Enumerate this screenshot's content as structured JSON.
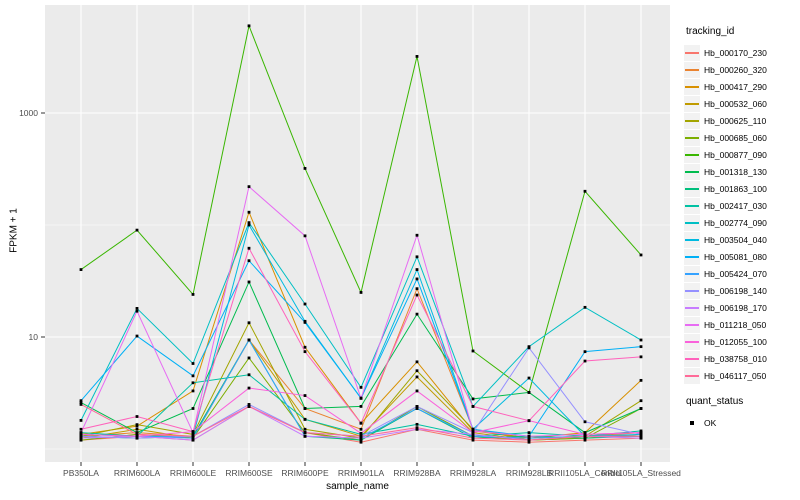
{
  "chart_data": {
    "type": "line",
    "title": "",
    "xlabel": "sample_name",
    "ylabel": "FPKM + 1",
    "y_scale": "log10",
    "ylim": [
      1.02,
      7000
    ],
    "grid": true,
    "legend_position": "right",
    "y_major_ticks": [
      {
        "label": "10",
        "value": 10
      },
      {
        "label": "1000",
        "value": 1000
      }
    ],
    "y_minor_ticks": [
      1,
      100
    ],
    "categories": [
      "PB350LA",
      "RRIM600LA",
      "RRIM600LE",
      "RRIM600SE",
      "RRIM600PE",
      "RRIM901LA",
      "RRIM928BA",
      "RRIM928LA",
      "RRIM928LB",
      "RRII105LA_Control",
      "RRII105LA_Stressed"
    ],
    "legend": {
      "title": "tracking_id"
    },
    "legend2": {
      "title": "quant_status",
      "items": [
        {
          "label": "OK",
          "marker": "black-square"
        }
      ]
    },
    "style": {
      "panel_bg": "#EBEBEB",
      "grid_color": "#FFFFFF",
      "tick_color": "#333333",
      "tick_label_color": "#4D4D4D",
      "point_color": "#000000",
      "key_bg": "#F2F2F2"
    },
    "series": [
      {
        "name": "Hb_000170_230",
        "color": "#F8766D",
        "values": [
          1.2,
          1.3,
          1.2,
          2.4,
          1.4,
          1.15,
          1.5,
          1.2,
          1.15,
          1.2,
          1.25
        ]
      },
      {
        "name": "Hb_000260_320",
        "color": "#EA8331",
        "values": [
          1.3,
          1.4,
          1.3,
          9.4,
          2.3,
          1.5,
          27.0,
          1.5,
          1.2,
          1.3,
          1.4
        ]
      },
      {
        "name": "Hb_000417_290",
        "color": "#D89000",
        "values": [
          1.35,
          1.6,
          3.3,
          130,
          8.1,
          1.7,
          6.0,
          1.45,
          1.25,
          1.4,
          4.1
        ]
      },
      {
        "name": "Hb_000532_060",
        "color": "#C09B00",
        "values": [
          1.25,
          1.5,
          1.25,
          9.4,
          1.84,
          1.3,
          4.4,
          1.4,
          1.2,
          1.25,
          1.35
        ]
      },
      {
        "name": "Hb_000625_110",
        "color": "#A3A500",
        "values": [
          1.3,
          1.65,
          1.35,
          13.4,
          1.5,
          1.25,
          5.0,
          1.5,
          1.25,
          1.3,
          2.7
        ]
      },
      {
        "name": "Hb_000685_060",
        "color": "#7CAE00",
        "values": [
          1.2,
          1.35,
          1.25,
          6.5,
          1.4,
          1.2,
          2.4,
          1.3,
          1.2,
          1.25,
          2.3
        ]
      },
      {
        "name": "Hb_000877_090",
        "color": "#39B600",
        "values": [
          40,
          90,
          24,
          6000,
          320,
          25,
          3200,
          7.5,
          3.2,
          200,
          54
        ]
      },
      {
        "name": "Hb_001318_130",
        "color": "#00BB4E",
        "values": [
          2.6,
          1.4,
          2.3,
          31.0,
          2.3,
          2.4,
          16.0,
          2.8,
          3.2,
          1.4,
          2.3
        ]
      },
      {
        "name": "Hb_001863_100",
        "color": "#00BF7D",
        "values": [
          1.3,
          1.25,
          1.3,
          9.4,
          1.3,
          1.2,
          2.3,
          1.25,
          1.3,
          1.25,
          1.3
        ]
      },
      {
        "name": "Hb_002417_030",
        "color": "#00C1A3",
        "values": [
          1.4,
          1.3,
          3.9,
          4.6,
          1.84,
          1.35,
          1.66,
          1.3,
          1.4,
          1.3,
          1.45
        ]
      },
      {
        "name": "Hb_002774_090",
        "color": "#00BFC4",
        "values": [
          1.8,
          18.0,
          5.8,
          105,
          19.7,
          3.55,
          52.0,
          2.4,
          8.2,
          18.4,
          9.4
        ]
      },
      {
        "name": "Hb_003504_040",
        "color": "#00BAE0",
        "values": [
          1.35,
          1.3,
          1.3,
          100,
          13.8,
          2.84,
          40.0,
          1.5,
          4.3,
          1.3,
          1.35
        ]
      },
      {
        "name": "Hb_005081_080",
        "color": "#00B0F6",
        "values": [
          2.7,
          10.2,
          4.5,
          48.0,
          13.5,
          2.84,
          33.0,
          1.5,
          1.3,
          7.4,
          8.2
        ]
      },
      {
        "name": "Hb_005424_070",
        "color": "#35A2FF",
        "values": [
          1.25,
          1.3,
          1.25,
          9.4,
          1.3,
          1.25,
          2.3,
          1.3,
          1.25,
          1.3,
          1.3
        ]
      },
      {
        "name": "Hb_006198_140",
        "color": "#9590FF",
        "values": [
          1.3,
          1.25,
          1.3,
          2.5,
          1.4,
          1.3,
          2.4,
          1.4,
          8.0,
          1.75,
          1.35
        ]
      },
      {
        "name": "Hb_006198_170",
        "color": "#C77CFF",
        "values": [
          1.25,
          1.3,
          1.2,
          2.4,
          1.3,
          1.25,
          1.5,
          1.35,
          1.2,
          1.3,
          1.25
        ]
      },
      {
        "name": "Hb_011218_050",
        "color": "#E76BF3",
        "values": [
          1.4,
          17.0,
          1.4,
          220,
          80.0,
          2.84,
          81.0,
          1.45,
          1.3,
          1.35,
          1.4
        ]
      },
      {
        "name": "Hb_012055_100",
        "color": "#FA62DB",
        "values": [
          1.35,
          1.3,
          1.43,
          3.5,
          3.0,
          1.38,
          3.3,
          1.4,
          1.79,
          1.35,
          1.4
        ]
      },
      {
        "name": "Hb_038758_010",
        "color": "#FF62BC",
        "values": [
          1.5,
          1.95,
          1.43,
          62.0,
          7.4,
          1.7,
          23.7,
          2.4,
          1.79,
          6.1,
          6.65
        ]
      },
      {
        "name": "Hb_046117_050",
        "color": "#FF6A98",
        "values": [
          2.5,
          1.35,
          1.3,
          2.4,
          1.4,
          1.3,
          1.55,
          1.25,
          1.2,
          1.3,
          1.3
        ]
      }
    ]
  }
}
